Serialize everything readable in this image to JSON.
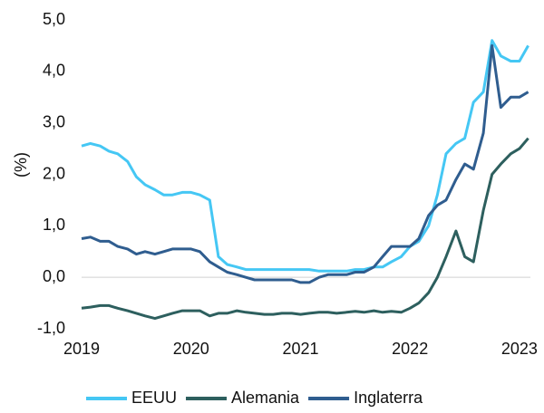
{
  "chart_data": {
    "type": "line",
    "y_label": "(%)",
    "x": [
      2019.0,
      2019.08,
      2019.17,
      2019.25,
      2019.33,
      2019.42,
      2019.5,
      2019.58,
      2019.67,
      2019.75,
      2019.83,
      2019.92,
      2020.0,
      2020.08,
      2020.17,
      2020.25,
      2020.33,
      2020.42,
      2020.5,
      2020.58,
      2020.67,
      2020.75,
      2020.83,
      2020.92,
      2021.0,
      2021.08,
      2021.17,
      2021.25,
      2021.33,
      2021.42,
      2021.5,
      2021.58,
      2021.67,
      2021.75,
      2021.83,
      2021.92,
      2022.0,
      2022.08,
      2022.17,
      2022.25,
      2022.33,
      2022.42,
      2022.5,
      2022.58,
      2022.67,
      2022.75,
      2022.83,
      2022.92,
      2023.0,
      2023.08
    ],
    "series": [
      {
        "name": "EEUU",
        "color": "#45c7f4",
        "values": [
          2.55,
          2.6,
          2.55,
          2.45,
          2.4,
          2.25,
          1.95,
          1.8,
          1.7,
          1.6,
          1.6,
          1.65,
          1.65,
          1.6,
          1.5,
          0.4,
          0.25,
          0.2,
          0.15,
          0.15,
          0.15,
          0.15,
          0.15,
          0.15,
          0.15,
          0.15,
          0.12,
          0.12,
          0.12,
          0.12,
          0.15,
          0.15,
          0.2,
          0.2,
          0.3,
          0.4,
          0.6,
          0.7,
          1.0,
          1.6,
          2.4,
          2.6,
          2.7,
          3.4,
          3.6,
          4.6,
          4.3,
          4.2,
          4.2,
          4.5
        ]
      },
      {
        "name": "Alemania",
        "color": "#2d5f5e",
        "values": [
          -0.6,
          -0.58,
          -0.55,
          -0.55,
          -0.6,
          -0.65,
          -0.7,
          -0.75,
          -0.8,
          -0.75,
          -0.7,
          -0.65,
          -0.65,
          -0.65,
          -0.75,
          -0.7,
          -0.7,
          -0.65,
          -0.68,
          -0.7,
          -0.72,
          -0.72,
          -0.7,
          -0.7,
          -0.72,
          -0.7,
          -0.68,
          -0.68,
          -0.7,
          -0.68,
          -0.66,
          -0.68,
          -0.65,
          -0.68,
          -0.66,
          -0.68,
          -0.6,
          -0.5,
          -0.3,
          0.0,
          0.4,
          0.9,
          0.4,
          0.3,
          1.3,
          2.0,
          2.2,
          2.4,
          2.5,
          2.7
        ]
      },
      {
        "name": "Inglaterra",
        "color": "#2f5d8f",
        "values": [
          0.75,
          0.78,
          0.7,
          0.7,
          0.6,
          0.55,
          0.45,
          0.5,
          0.45,
          0.5,
          0.55,
          0.55,
          0.55,
          0.5,
          0.3,
          0.2,
          0.1,
          0.05,
          0.0,
          -0.05,
          -0.05,
          -0.05,
          -0.05,
          -0.05,
          -0.1,
          -0.1,
          0.0,
          0.05,
          0.05,
          0.05,
          0.1,
          0.1,
          0.2,
          0.4,
          0.6,
          0.6,
          0.6,
          0.75,
          1.2,
          1.4,
          1.5,
          1.9,
          2.2,
          2.1,
          2.8,
          4.5,
          3.3,
          3.5,
          3.5,
          3.6
        ]
      }
    ],
    "xlim": [
      2019,
      2023.1
    ],
    "xticks": [
      2019,
      2020,
      2021,
      2022,
      2023
    ],
    "ylim": [
      -1,
      5
    ],
    "yticks": [
      {
        "value": -1,
        "label": "-1,0"
      },
      {
        "value": 0,
        "label": "0,0"
      },
      {
        "value": 1,
        "label": "1,0"
      },
      {
        "value": 2,
        "label": "2,0"
      },
      {
        "value": 3,
        "label": "3,0"
      },
      {
        "value": 4,
        "label": "4,0"
      },
      {
        "value": 5,
        "label": "5,0"
      }
    ],
    "zero_line": true,
    "legend": "bottom"
  }
}
